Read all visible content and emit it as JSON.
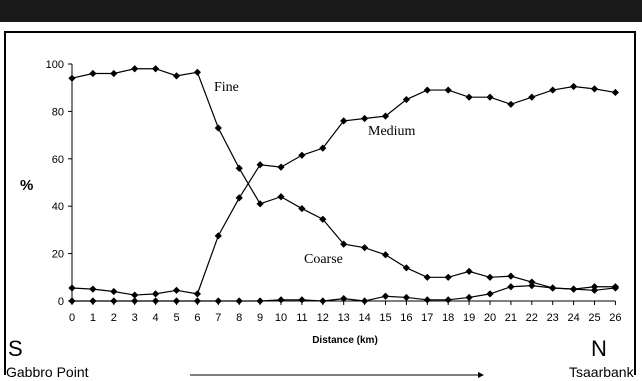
{
  "chart_data": {
    "type": "line",
    "x": [
      0,
      1,
      2,
      3,
      4,
      5,
      6,
      7,
      8,
      9,
      10,
      11,
      12,
      13,
      14,
      15,
      16,
      17,
      18,
      19,
      20,
      21,
      22,
      23,
      24,
      25,
      26
    ],
    "xlabel": "Distance (km)",
    "ylabel": "%",
    "ylim": [
      0,
      100
    ],
    "y_ticks": [
      0,
      20,
      40,
      60,
      80,
      100
    ],
    "grid": false,
    "series": [
      {
        "name": "Fine",
        "values": [
          94,
          96,
          96,
          98,
          98,
          95,
          96.5,
          73,
          56,
          41,
          44,
          39,
          34.5,
          24,
          22.5,
          19.5,
          14,
          10,
          10,
          12.5,
          10,
          10.5,
          8,
          5.5,
          5,
          6,
          6
        ]
      },
      {
        "name": "Medium",
        "values": [
          5.5,
          5,
          4,
          2.5,
          3,
          4.5,
          3,
          27.5,
          43.5,
          57.5,
          56.5,
          61.5,
          64.5,
          76,
          77,
          78,
          85,
          89,
          89,
          86,
          86,
          83,
          86,
          89,
          90.5,
          89.5,
          88
        ]
      },
      {
        "name": "Coarse",
        "values": [
          0,
          0,
          0,
          0,
          0,
          0,
          0,
          0,
          0,
          0,
          0.5,
          0.5,
          0,
          1,
          0,
          2,
          1.5,
          0.5,
          0.5,
          1.5,
          3,
          6,
          6.5,
          5.5,
          5,
          4.5,
          5.5
        ]
      }
    ],
    "annotations": {
      "left_letter": "S",
      "left_place": "Gabbro Point",
      "right_letter": "N",
      "right_place": "Tsaarbank"
    },
    "colors": {
      "line": "#000000",
      "header": "#1a1a1a"
    }
  }
}
